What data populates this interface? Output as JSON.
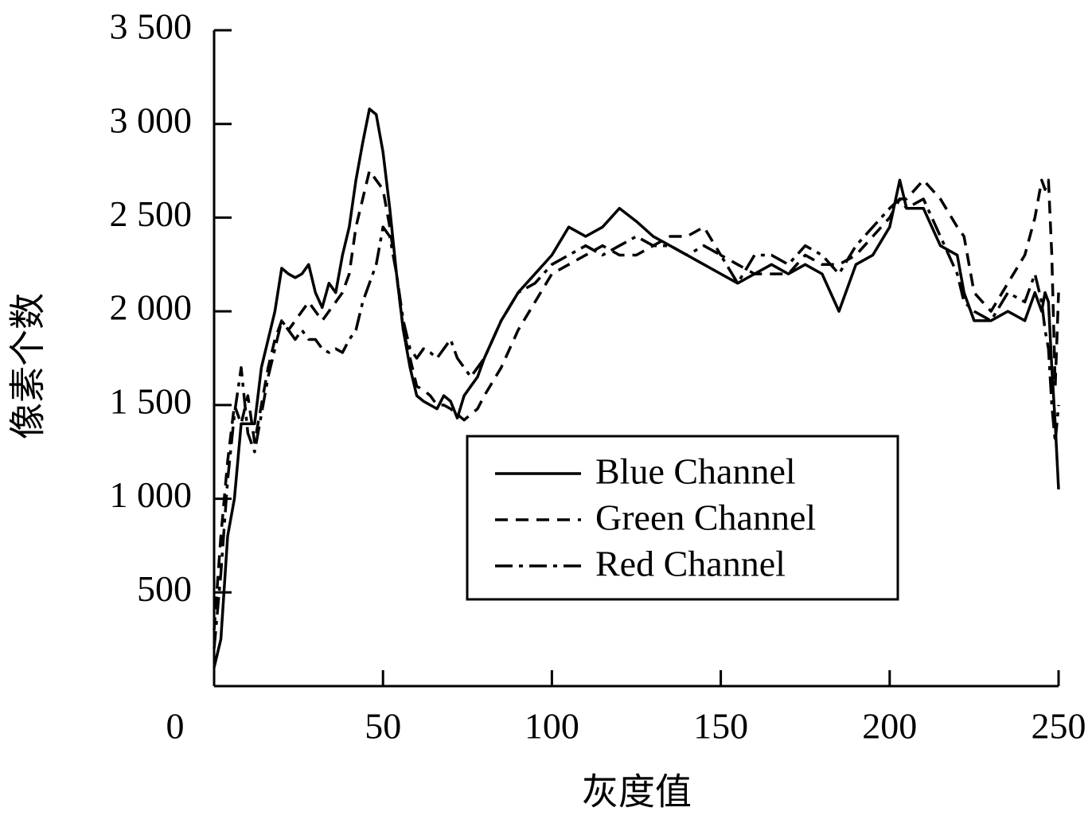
{
  "chart_data": {
    "type": "line",
    "x_label": "灰度值",
    "y_label": "像素个数",
    "x": [
      0,
      2,
      4,
      6,
      8,
      10,
      12,
      14,
      16,
      18,
      20,
      22,
      24,
      26,
      28,
      30,
      32,
      34,
      36,
      38,
      40,
      42,
      44,
      46,
      48,
      50,
      52,
      54,
      56,
      58,
      60,
      62,
      64,
      66,
      68,
      70,
      72,
      74,
      76,
      78,
      80,
      85,
      90,
      95,
      100,
      105,
      110,
      115,
      120,
      125,
      130,
      135,
      140,
      145,
      150,
      155,
      160,
      165,
      170,
      175,
      180,
      185,
      190,
      195,
      200,
      203,
      205,
      210,
      215,
      220,
      222,
      225,
      230,
      235,
      240,
      243,
      245,
      246,
      247,
      248,
      249,
      250
    ],
    "series": [
      {
        "name": "Blue Channel",
        "color": "#000000",
        "linestyle": "solid",
        "values": [
          100,
          250,
          800,
          1000,
          1400,
          1400,
          1400,
          1700,
          1850,
          2000,
          2230,
          2200,
          2180,
          2200,
          2250,
          2100,
          2020,
          2150,
          2100,
          2300,
          2450,
          2700,
          2900,
          3080,
          3050,
          2850,
          2550,
          2200,
          1900,
          1700,
          1550,
          1520,
          1500,
          1480,
          1550,
          1520,
          1430,
          1550,
          1600,
          1650,
          1750,
          1950,
          2100,
          2200,
          2300,
          2450,
          2400,
          2450,
          2550,
          2480,
          2400,
          2350,
          2300,
          2250,
          2200,
          2150,
          2200,
          2250,
          2200,
          2250,
          2200,
          2000,
          2250,
          2300,
          2450,
          2700,
          2550,
          2550,
          2350,
          2300,
          2100,
          1950,
          1950,
          2000,
          1950,
          2100,
          2000,
          2100,
          2050,
          1700,
          1400,
          1050
        ]
      },
      {
        "name": "Green Channel",
        "color": "#000000",
        "linestyle": "dashed",
        "values": [
          300,
          800,
          1200,
          1500,
          1400,
          1550,
          1300,
          1500,
          1700,
          1850,
          1950,
          1900,
          1950,
          2000,
          2050,
          2000,
          1950,
          2000,
          2050,
          2100,
          2200,
          2450,
          2600,
          2750,
          2700,
          2650,
          2450,
          2200,
          1900,
          1750,
          1600,
          1580,
          1550,
          1500,
          1500,
          1480,
          1450,
          1420,
          1450,
          1480,
          1550,
          1700,
          1900,
          2050,
          2200,
          2250,
          2300,
          2350,
          2300,
          2300,
          2350,
          2400,
          2400,
          2450,
          2300,
          2250,
          2200,
          2200,
          2200,
          2300,
          2250,
          2250,
          2300,
          2400,
          2500,
          2600,
          2600,
          2700,
          2600,
          2450,
          2400,
          2100,
          2000,
          2150,
          2300,
          2500,
          2700,
          2650,
          2700,
          2300,
          1600,
          2100
        ]
      },
      {
        "name": "Red Channel",
        "color": "#000000",
        "linestyle": "dashdot",
        "values": [
          200,
          600,
          1100,
          1450,
          1700,
          1350,
          1250,
          1450,
          1650,
          1800,
          1950,
          1900,
          1850,
          1900,
          1850,
          1850,
          1800,
          1780,
          1800,
          1780,
          1850,
          1900,
          2050,
          2150,
          2250,
          2450,
          2400,
          2200,
          1950,
          1800,
          1750,
          1800,
          1780,
          1750,
          1800,
          1850,
          1750,
          1700,
          1650,
          1700,
          1750,
          1950,
          2100,
          2150,
          2250,
          2300,
          2350,
          2300,
          2350,
          2400,
          2350,
          2350,
          2300,
          2350,
          2300,
          2150,
          2300,
          2300,
          2250,
          2350,
          2300,
          2200,
          2350,
          2450,
          2550,
          2600,
          2550,
          2600,
          2400,
          2200,
          2050,
          2000,
          1950,
          2100,
          2050,
          2200,
          2050,
          1900,
          1800,
          1500,
          1300,
          1500
        ]
      }
    ],
    "xlim": [
      0,
      250
    ],
    "xticks": [
      0,
      50,
      100,
      150,
      200,
      250
    ],
    "ylim": [
      0,
      3500
    ],
    "yticks": [
      500,
      {
        "value": 1000,
        "label": "1 000"
      },
      {
        "value": 1500,
        "label": "1 500"
      },
      {
        "value": 2000,
        "label": "2 000"
      },
      {
        "value": 2500,
        "label": "2 500"
      },
      {
        "value": 3000,
        "label": "3 000"
      },
      {
        "value": 3500,
        "label": "3 500"
      }
    ],
    "grid": false
  }
}
